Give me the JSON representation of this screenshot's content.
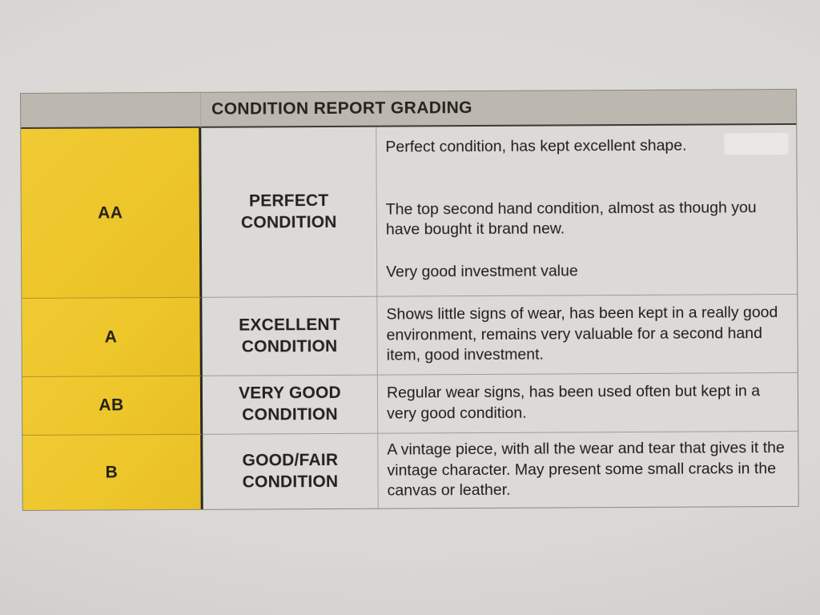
{
  "table": {
    "title": "CONDITION REPORT GRADING",
    "rows": [
      {
        "grade": "AA",
        "label": "PERFECT CONDITION",
        "paragraphs": [
          "Perfect condition, has kept excellent shape.",
          "The top second hand condition, almost as though you have bought it brand new.",
          "Very good investment value"
        ]
      },
      {
        "grade": "A",
        "label": "EXCELLENT CONDITION",
        "paragraphs": [
          "Shows little signs of wear, has been kept in a really good environment, remains very valuable for a second hand item, good investment."
        ]
      },
      {
        "grade": "AB",
        "label": "VERY GOOD CONDITION",
        "paragraphs": [
          "Regular wear signs, has been used often but kept in a very good condition."
        ]
      },
      {
        "grade": "B",
        "label": "GOOD/FAIR CONDITION",
        "paragraphs": [
          "A vintage piece, with all the wear and tear that gives it the vintage character. May present some small cracks in the canvas or leather."
        ]
      }
    ],
    "colors": {
      "grade_cell_yellow": "#edc62b",
      "header_gray": "#bcb8b0",
      "cell_gray": "#dcdad7",
      "page_gray": "#dad8d5",
      "text": "#1e1d1b"
    }
  }
}
